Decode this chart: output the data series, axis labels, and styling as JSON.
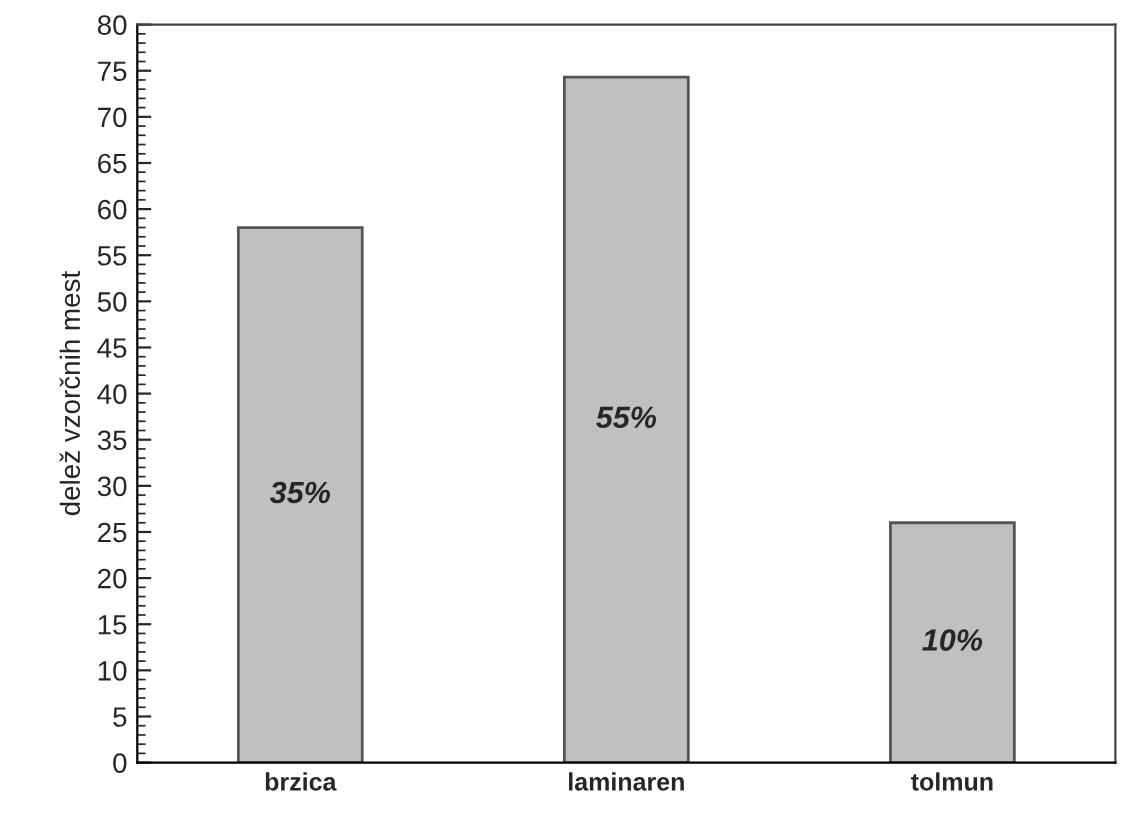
{
  "chart_data": {
    "type": "bar",
    "ylabel": "delež vzorčnih mest",
    "categories": [
      "brzica",
      "laminaren",
      "tolmun"
    ],
    "values": [
      58,
      74.3,
      26
    ],
    "color": "#c0c0c0",
    "ylim": [
      0,
      80
    ],
    "yticks": [
      0,
      5,
      10,
      15,
      20,
      25,
      30,
      35,
      40,
      45,
      50,
      55,
      60,
      65,
      70,
      75,
      80
    ],
    "grid": false,
    "annotations": [
      "35%",
      "55%",
      "10%"
    ]
  }
}
